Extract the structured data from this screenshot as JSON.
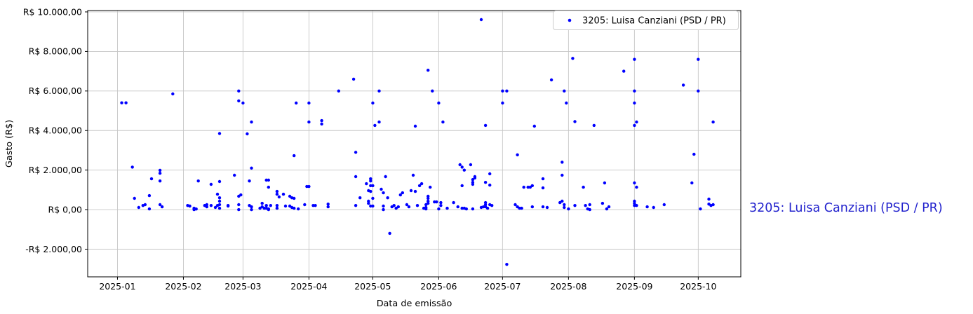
{
  "side_label": {
    "text": "3205: Luisa Canziani (PSD / PR)",
    "color": "#2323cd"
  },
  "colors": {
    "marker": "#0000ff",
    "grid": "#c6c6c6",
    "frame": "#000000",
    "legend_border": "#cccccc",
    "legend_bg": "#ffffff",
    "tick_text": "#000000"
  },
  "chart_data": {
    "type": "scatter",
    "title": "",
    "xlabel": "Data de emissão",
    "ylabel": "Gasto (R$)",
    "grid": true,
    "legend_position": "upper right",
    "legend": [
      {
        "label": "3205: Luisa Canziani (PSD / PR)",
        "color": "#0000ff"
      }
    ],
    "ylim": [
      -3400,
      10070
    ],
    "xlim": [
      "2024-12-18",
      "2025-10-21"
    ],
    "y_ticks": [
      {
        "value": 10000,
        "label": "R$ 10.000,00"
      },
      {
        "value": 8000,
        "label": "R$ 8.000,00"
      },
      {
        "value": 6000,
        "label": "R$ 6.000,00"
      },
      {
        "value": 4000,
        "label": "R$ 4.000,00"
      },
      {
        "value": 2000,
        "label": "R$ 2.000,00"
      },
      {
        "value": 0,
        "label": "R$ 0,00"
      },
      {
        "value": -2000,
        "label": "-R$ 2.000,00"
      }
    ],
    "x_ticks": [
      {
        "date": "2025-01-01",
        "label": "2025-01"
      },
      {
        "date": "2025-02-01",
        "label": "2025-02"
      },
      {
        "date": "2025-03-01",
        "label": "2025-03"
      },
      {
        "date": "2025-04-01",
        "label": "2025-04"
      },
      {
        "date": "2025-05-01",
        "label": "2025-05"
      },
      {
        "date": "2025-06-01",
        "label": "2025-06"
      },
      {
        "date": "2025-07-01",
        "label": "2025-07"
      },
      {
        "date": "2025-08-01",
        "label": "2025-08"
      },
      {
        "date": "2025-09-01",
        "label": "2025-09"
      },
      {
        "date": "2025-10-01",
        "label": "2025-10"
      }
    ],
    "points": [
      [
        "2025-01-03",
        5400
      ],
      [
        "2025-01-05",
        5400
      ],
      [
        "2025-01-08",
        2150
      ],
      [
        "2025-01-09",
        570
      ],
      [
        "2025-01-11",
        110
      ],
      [
        "2025-01-13",
        210
      ],
      [
        "2025-01-14",
        250
      ],
      [
        "2025-01-16",
        710
      ],
      [
        "2025-01-16",
        35
      ],
      [
        "2025-01-17",
        1560
      ],
      [
        "2025-01-21",
        1990
      ],
      [
        "2025-01-21",
        1840
      ],
      [
        "2025-01-21",
        1450
      ],
      [
        "2025-01-21",
        250
      ],
      [
        "2025-01-22",
        140
      ],
      [
        "2025-01-27",
        5850
      ],
      [
        "2025-02-03",
        210
      ],
      [
        "2025-02-04",
        180
      ],
      [
        "2025-02-06",
        70
      ],
      [
        "2025-02-06",
        0
      ],
      [
        "2025-02-07",
        30
      ],
      [
        "2025-02-08",
        1450
      ],
      [
        "2025-02-11",
        210
      ],
      [
        "2025-02-12",
        140
      ],
      [
        "2025-02-12",
        250
      ],
      [
        "2025-02-14",
        1280
      ],
      [
        "2025-02-14",
        210
      ],
      [
        "2025-02-16",
        110
      ],
      [
        "2025-02-17",
        780
      ],
      [
        "2025-02-17",
        210
      ],
      [
        "2025-02-18",
        3850
      ],
      [
        "2025-02-18",
        1420
      ],
      [
        "2025-02-18",
        600
      ],
      [
        "2025-02-18",
        430
      ],
      [
        "2025-02-18",
        250
      ],
      [
        "2025-02-18",
        70
      ],
      [
        "2025-02-22",
        210
      ],
      [
        "2025-02-22",
        180
      ],
      [
        "2025-02-25",
        1740
      ],
      [
        "2025-02-27",
        6000
      ],
      [
        "2025-02-27",
        5500
      ],
      [
        "2025-02-27",
        675
      ],
      [
        "2025-02-27",
        250
      ],
      [
        "2025-02-27",
        0
      ],
      [
        "2025-02-28",
        745
      ],
      [
        "2025-03-01",
        5390
      ],
      [
        "2025-03-03",
        3830
      ],
      [
        "2025-03-04",
        1450
      ],
      [
        "2025-03-04",
        210
      ],
      [
        "2025-03-05",
        4430
      ],
      [
        "2025-03-05",
        2100
      ],
      [
        "2025-03-05",
        140
      ],
      [
        "2025-03-05",
        0
      ],
      [
        "2025-03-09",
        70
      ],
      [
        "2025-03-10",
        320
      ],
      [
        "2025-03-10",
        140
      ],
      [
        "2025-03-11",
        70
      ],
      [
        "2025-03-12",
        1490
      ],
      [
        "2025-03-12",
        210
      ],
      [
        "2025-03-12",
        70
      ],
      [
        "2025-03-13",
        1490
      ],
      [
        "2025-03-13",
        1135
      ],
      [
        "2025-03-13",
        35
      ],
      [
        "2025-03-13",
        0
      ],
      [
        "2025-03-14",
        210
      ],
      [
        "2025-03-17",
        920
      ],
      [
        "2025-03-17",
        780
      ],
      [
        "2025-03-17",
        210
      ],
      [
        "2025-03-17",
        70
      ],
      [
        "2025-03-18",
        640
      ],
      [
        "2025-03-20",
        780
      ],
      [
        "2025-03-21",
        180
      ],
      [
        "2025-03-23",
        675
      ],
      [
        "2025-03-23",
        180
      ],
      [
        "2025-03-24",
        600
      ],
      [
        "2025-03-24",
        110
      ],
      [
        "2025-03-25",
        570
      ],
      [
        "2025-03-25",
        70
      ],
      [
        "2025-03-25",
        2730
      ],
      [
        "2025-03-26",
        5390
      ],
      [
        "2025-03-27",
        35
      ],
      [
        "2025-03-30",
        250
      ],
      [
        "2025-03-31",
        1170
      ],
      [
        "2025-04-01",
        5390
      ],
      [
        "2025-04-01",
        4430
      ],
      [
        "2025-04-01",
        1170
      ],
      [
        "2025-04-03",
        210
      ],
      [
        "2025-04-04",
        210
      ],
      [
        "2025-04-07",
        4500
      ],
      [
        "2025-04-07",
        4330
      ],
      [
        "2025-04-10",
        280
      ],
      [
        "2025-04-10",
        140
      ],
      [
        "2025-04-15",
        6000
      ],
      [
        "2025-04-22",
        6600
      ],
      [
        "2025-04-23",
        2900
      ],
      [
        "2025-04-23",
        1670
      ],
      [
        "2025-04-23",
        210
      ],
      [
        "2025-04-25",
        600
      ],
      [
        "2025-04-28",
        1310
      ],
      [
        "2025-04-29",
        960
      ],
      [
        "2025-04-29",
        430
      ],
      [
        "2025-04-29",
        320
      ],
      [
        "2025-04-30",
        1560
      ],
      [
        "2025-04-30",
        1450
      ],
      [
        "2025-04-30",
        1210
      ],
      [
        "2025-04-30",
        920
      ],
      [
        "2025-04-30",
        180
      ],
      [
        "2025-05-01",
        5390
      ],
      [
        "2025-05-01",
        1210
      ],
      [
        "2025-05-01",
        570
      ],
      [
        "2025-05-01",
        180
      ],
      [
        "2025-05-02",
        4260
      ],
      [
        "2025-05-04",
        6000
      ],
      [
        "2025-05-04",
        4430
      ],
      [
        "2025-05-05",
        1030
      ],
      [
        "2025-05-06",
        850
      ],
      [
        "2025-05-06",
        180
      ],
      [
        "2025-05-06",
        0
      ],
      [
        "2025-05-07",
        1670
      ],
      [
        "2025-05-08",
        600
      ],
      [
        "2025-05-09",
        -1200
      ],
      [
        "2025-05-10",
        140
      ],
      [
        "2025-05-11",
        210
      ],
      [
        "2025-05-12",
        70
      ],
      [
        "2025-05-13",
        140
      ],
      [
        "2025-05-14",
        745
      ],
      [
        "2025-05-15",
        850
      ],
      [
        "2025-05-17",
        250
      ],
      [
        "2025-05-18",
        140
      ],
      [
        "2025-05-19",
        960
      ],
      [
        "2025-05-20",
        1740
      ],
      [
        "2025-05-21",
        920
      ],
      [
        "2025-05-21",
        4220
      ],
      [
        "2025-05-22",
        210
      ],
      [
        "2025-05-23",
        1210
      ],
      [
        "2025-05-24",
        1310
      ],
      [
        "2025-05-25",
        70
      ],
      [
        "2025-05-26",
        250
      ],
      [
        "2025-05-26",
        110
      ],
      [
        "2025-05-26",
        35
      ],
      [
        "2025-05-27",
        7050
      ],
      [
        "2025-05-27",
        675
      ],
      [
        "2025-05-27",
        570
      ],
      [
        "2025-05-27",
        430
      ],
      [
        "2025-05-27",
        320
      ],
      [
        "2025-05-28",
        1135
      ],
      [
        "2025-05-29",
        6000
      ],
      [
        "2025-05-30",
        390
      ],
      [
        "2025-05-31",
        390
      ],
      [
        "2025-06-01",
        5390
      ],
      [
        "2025-06-01",
        35
      ],
      [
        "2025-06-02",
        355
      ],
      [
        "2025-06-02",
        210
      ],
      [
        "2025-06-03",
        4430
      ],
      [
        "2025-06-05",
        70
      ],
      [
        "2025-06-08",
        355
      ],
      [
        "2025-06-10",
        140
      ],
      [
        "2025-06-11",
        2270
      ],
      [
        "2025-06-12",
        2150
      ],
      [
        "2025-06-12",
        1210
      ],
      [
        "2025-06-12",
        70
      ],
      [
        "2025-06-13",
        2000
      ],
      [
        "2025-06-13",
        70
      ],
      [
        "2025-06-14",
        35
      ],
      [
        "2025-06-16",
        2270
      ],
      [
        "2025-06-17",
        1520
      ],
      [
        "2025-06-17",
        1380
      ],
      [
        "2025-06-17",
        1280
      ],
      [
        "2025-06-17",
        35
      ],
      [
        "2025-06-18",
        1670
      ],
      [
        "2025-06-18",
        1600
      ],
      [
        "2025-06-21",
        9610
      ],
      [
        "2025-06-21",
        110
      ],
      [
        "2025-06-22",
        140
      ],
      [
        "2025-06-23",
        4260
      ],
      [
        "2025-06-23",
        1380
      ],
      [
        "2025-06-23",
        355
      ],
      [
        "2025-06-23",
        250
      ],
      [
        "2025-06-23",
        140
      ],
      [
        "2025-06-24",
        70
      ],
      [
        "2025-06-25",
        1810
      ],
      [
        "2025-06-25",
        1240
      ],
      [
        "2025-06-25",
        250
      ],
      [
        "2025-06-26",
        210
      ],
      [
        "2025-07-01",
        6000
      ],
      [
        "2025-07-01",
        5390
      ],
      [
        "2025-07-03",
        6000
      ],
      [
        "2025-07-03",
        -2770
      ],
      [
        "2025-07-07",
        250
      ],
      [
        "2025-07-08",
        2770
      ],
      [
        "2025-07-08",
        140
      ],
      [
        "2025-07-09",
        70
      ],
      [
        "2025-07-10",
        70
      ],
      [
        "2025-07-11",
        1135
      ],
      [
        "2025-07-13",
        1135
      ],
      [
        "2025-07-14",
        1135
      ],
      [
        "2025-07-15",
        1210
      ],
      [
        "2025-07-15",
        140
      ],
      [
        "2025-07-16",
        4220
      ],
      [
        "2025-07-20",
        1560
      ],
      [
        "2025-07-20",
        1100
      ],
      [
        "2025-07-20",
        140
      ],
      [
        "2025-07-22",
        110
      ],
      [
        "2025-07-24",
        6560
      ],
      [
        "2025-07-28",
        355
      ],
      [
        "2025-07-29",
        2400
      ],
      [
        "2025-07-29",
        1740
      ],
      [
        "2025-07-29",
        430
      ],
      [
        "2025-07-30",
        6000
      ],
      [
        "2025-07-30",
        250
      ],
      [
        "2025-07-30",
        110
      ],
      [
        "2025-07-31",
        5390
      ],
      [
        "2025-08-01",
        35
      ],
      [
        "2025-08-03",
        7650
      ],
      [
        "2025-08-04",
        4450
      ],
      [
        "2025-08-04",
        210
      ],
      [
        "2025-08-08",
        1135
      ],
      [
        "2025-08-09",
        210
      ],
      [
        "2025-08-10",
        35
      ],
      [
        "2025-08-11",
        250
      ],
      [
        "2025-08-11",
        0
      ],
      [
        "2025-08-13",
        4260
      ],
      [
        "2025-08-17",
        320
      ],
      [
        "2025-08-18",
        1350
      ],
      [
        "2025-08-19",
        35
      ],
      [
        "2025-08-20",
        140
      ],
      [
        "2025-08-27",
        7000
      ],
      [
        "2025-09-01",
        7600
      ],
      [
        "2025-09-01",
        6000
      ],
      [
        "2025-09-01",
        5390
      ],
      [
        "2025-09-01",
        4260
      ],
      [
        "2025-09-01",
        1350
      ],
      [
        "2025-09-01",
        430
      ],
      [
        "2025-09-01",
        320
      ],
      [
        "2025-09-01",
        210
      ],
      [
        "2025-09-02",
        4430
      ],
      [
        "2025-09-02",
        1135
      ],
      [
        "2025-09-02",
        210
      ],
      [
        "2025-09-07",
        140
      ],
      [
        "2025-09-10",
        110
      ],
      [
        "2025-09-15",
        250
      ],
      [
        "2025-09-24",
        6300
      ],
      [
        "2025-09-28",
        1350
      ],
      [
        "2025-09-29",
        2800
      ],
      [
        "2025-10-01",
        7600
      ],
      [
        "2025-10-01",
        6000
      ],
      [
        "2025-10-02",
        35
      ],
      [
        "2025-10-06",
        530
      ],
      [
        "2025-10-06",
        280
      ],
      [
        "2025-10-07",
        210
      ],
      [
        "2025-10-08",
        4430
      ],
      [
        "2025-10-08",
        250
      ]
    ]
  }
}
